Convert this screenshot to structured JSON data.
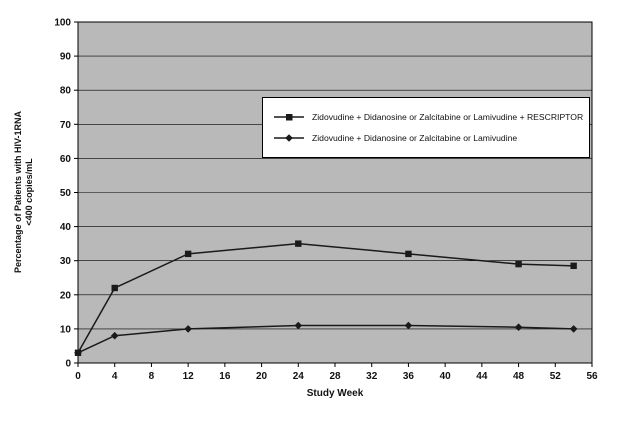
{
  "chart_data": {
    "type": "line",
    "title": "",
    "xlabel": "Study Week",
    "ylabel_line1": "Percentage of Patients with HIV-1RNA",
    "ylabel_line2": "<400 copies/mL",
    "xlim": [
      0,
      56
    ],
    "ylim": [
      0,
      100
    ],
    "x_ticks": [
      0,
      4,
      8,
      12,
      16,
      20,
      24,
      28,
      32,
      36,
      40,
      44,
      48,
      52,
      56
    ],
    "y_ticks": [
      0,
      10,
      20,
      30,
      40,
      50,
      60,
      70,
      80,
      90,
      100
    ],
    "grid": "horizontal",
    "legend_position": "inside-upper-right",
    "plot_bg_color": "#b9b9b9",
    "line_color": "#1a1a1a",
    "series": [
      {
        "name": "Zidovudine + Didanosine or Zalcitabine or Lamivudine + RESCRIPTOR",
        "marker": "square",
        "x": [
          0,
          4,
          12,
          24,
          36,
          48,
          54
        ],
        "y": [
          3,
          22,
          32,
          35,
          32,
          29,
          28.5
        ]
      },
      {
        "name": "Zidovudine + Didanosine or Zalcitabine or Lamivudine",
        "marker": "diamond",
        "x": [
          0,
          4,
          12,
          24,
          36,
          48,
          54
        ],
        "y": [
          3,
          8,
          10,
          11,
          11,
          10.5,
          10
        ]
      }
    ]
  }
}
